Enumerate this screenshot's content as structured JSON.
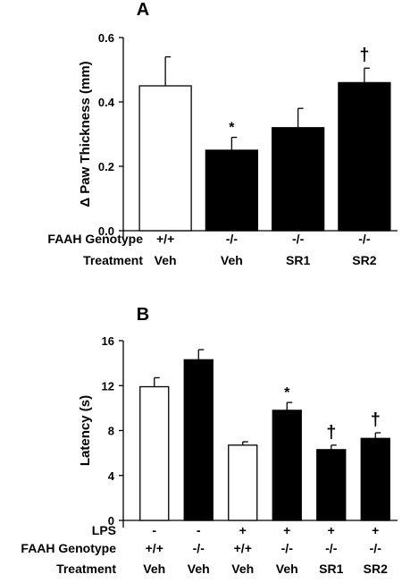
{
  "chart_data": [
    {
      "panel_label": "A",
      "type": "bar",
      "ylabel": "Δ Paw Thickness (mm)",
      "ylim": [
        0,
        0.6
      ],
      "yticks": [
        "0.0",
        "0.2",
        "0.4",
        "0.6"
      ],
      "row_labels": [
        "FAAH Genotype",
        "Treatment"
      ],
      "categories": [
        {
          "rows": [
            "+/+",
            "Veh"
          ],
          "value": 0.45,
          "error": 0.09,
          "fill": "white",
          "marker": ""
        },
        {
          "rows": [
            "-/-",
            "Veh"
          ],
          "value": 0.25,
          "error": 0.04,
          "fill": "black",
          "marker": "*"
        },
        {
          "rows": [
            "-/-",
            "SR1"
          ],
          "value": 0.32,
          "error": 0.06,
          "fill": "black",
          "marker": ""
        },
        {
          "rows": [
            "-/-",
            "SR2"
          ],
          "value": 0.46,
          "error": 0.045,
          "fill": "black",
          "marker": "†"
        }
      ]
    },
    {
      "panel_label": "B",
      "type": "bar",
      "ylabel": "Latency (s)",
      "ylim": [
        0,
        16
      ],
      "yticks": [
        "0",
        "4",
        "8",
        "12",
        "16"
      ],
      "row_labels": [
        "LPS",
        "FAAH Genotype",
        "Treatment"
      ],
      "categories": [
        {
          "rows": [
            "-",
            "+/+",
            "Veh"
          ],
          "value": 11.9,
          "error": 0.8,
          "fill": "white",
          "marker": ""
        },
        {
          "rows": [
            "-",
            "-/-",
            "Veh"
          ],
          "value": 14.3,
          "error": 0.9,
          "fill": "black",
          "marker": ""
        },
        {
          "rows": [
            "+",
            "+/+",
            "Veh"
          ],
          "value": 6.7,
          "error": 0.3,
          "fill": "white",
          "marker": ""
        },
        {
          "rows": [
            "+",
            "-/-",
            "Veh"
          ],
          "value": 9.8,
          "error": 0.7,
          "fill": "black",
          "marker": "*"
        },
        {
          "rows": [
            "+",
            "-/-",
            "SR1"
          ],
          "value": 6.3,
          "error": 0.4,
          "fill": "black",
          "marker": "†"
        },
        {
          "rows": [
            "+",
            "-/-",
            "SR2"
          ],
          "value": 7.3,
          "error": 0.5,
          "fill": "black",
          "marker": "†"
        }
      ]
    }
  ]
}
